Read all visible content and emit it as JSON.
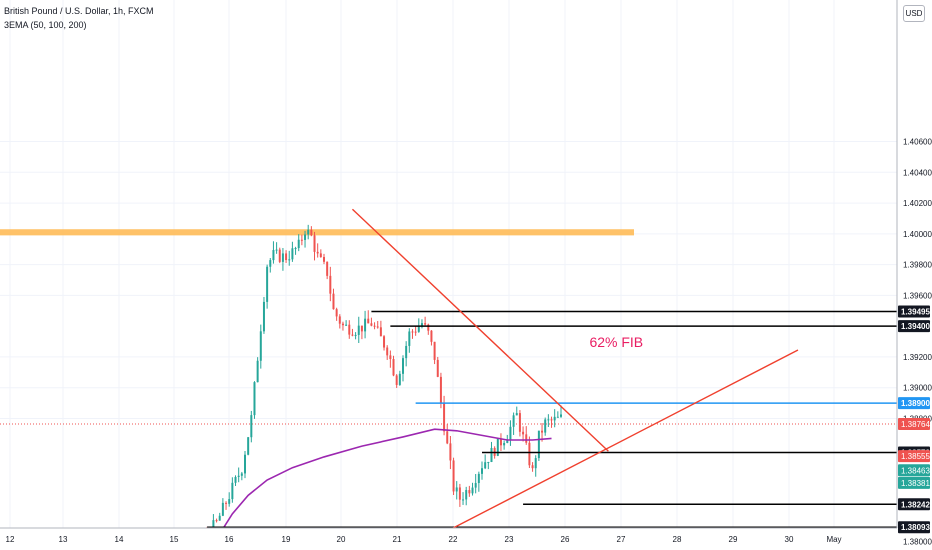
{
  "header": {
    "title": "British Pound / U.S. Dollar, 1h, FXCM",
    "indicator": "3EMA (50, 100, 200)"
  },
  "currency_button": "USD",
  "chart_data": {
    "type": "candlestick",
    "title": "British Pound / U.S. Dollar, 1h, FXCM",
    "x_tick_labels": [
      "12",
      "13",
      "14",
      "15",
      "16",
      "19",
      "20",
      "21",
      "22",
      "23",
      "26",
      "27",
      "28",
      "29",
      "30",
      "May"
    ],
    "y_ticks": [
      "1.40600",
      "1.40400",
      "1.40200",
      "1.40000",
      "1.39800",
      "1.39600",
      "1.39200",
      "1.39000",
      "1.38800",
      "1.38000"
    ],
    "y_range": [
      1.3788,
      1.4074
    ],
    "candle_count": 200,
    "price_path": [
      [
        0,
        1.379
      ],
      [
        30,
        1.3793
      ],
      [
        45,
        1.3792
      ],
      [
        55,
        1.3798
      ],
      [
        62,
        1.3802
      ],
      [
        66,
        1.3812
      ],
      [
        70,
        1.383
      ],
      [
        74,
        1.3848
      ],
      [
        77,
        1.388
      ],
      [
        80,
        1.394
      ],
      [
        82,
        1.398
      ],
      [
        84,
        1.3986
      ],
      [
        88,
        1.3985
      ],
      [
        90,
        1.3988
      ],
      [
        92,
        1.3992
      ],
      [
        94,
        1.4003
      ],
      [
        96,
        1.3998
      ],
      [
        98,
        1.3985
      ],
      [
        101,
        1.3975
      ],
      [
        103,
        1.395
      ],
      [
        106,
        1.394
      ],
      [
        110,
        1.3938
      ],
      [
        115,
        1.3942
      ],
      [
        120,
        1.3925
      ],
      [
        123,
        1.3905
      ],
      [
        127,
        1.3935
      ],
      [
        131,
        1.3942
      ],
      [
        133,
        1.3935
      ],
      [
        135,
        1.392
      ],
      [
        137,
        1.389
      ],
      [
        139,
        1.3862
      ],
      [
        141,
        1.3835
      ],
      [
        143,
        1.3828
      ],
      [
        146,
        1.3835
      ],
      [
        150,
        1.385
      ],
      [
        154,
        1.386
      ],
      [
        158,
        1.387
      ],
      [
        161,
        1.3882
      ],
      [
        164,
        1.386
      ],
      [
        166,
        1.3845
      ],
      [
        168,
        1.3868
      ],
      [
        170,
        1.3877
      ],
      [
        175,
        1.388
      ]
    ],
    "ema": [
      [
        60,
        1.3782
      ],
      [
        63,
        1.379
      ],
      [
        67,
        1.3805
      ],
      [
        71,
        1.3818
      ],
      [
        76,
        1.383
      ],
      [
        82,
        1.384
      ],
      [
        90,
        1.3848
      ],
      [
        100,
        1.3855
      ],
      [
        112,
        1.3862
      ],
      [
        125,
        1.3868
      ],
      [
        135,
        1.3873
      ],
      [
        142,
        1.3872
      ],
      [
        150,
        1.3869
      ],
      [
        158,
        1.3866
      ],
      [
        166,
        1.3866
      ],
      [
        172,
        1.3867
      ]
    ],
    "horizontal_levels": [
      {
        "label": "1.39495",
        "price": 1.39495,
        "color": "#000000",
        "x_start": 115
      },
      {
        "label": "1.39400",
        "price": 1.394,
        "color": "#000000",
        "x_start": 121
      },
      {
        "label": "1.38900",
        "price": 1.389,
        "color": "#2196f3",
        "x_start": 129
      },
      {
        "label": "1.38579",
        "price": 1.38579,
        "color": "#000000",
        "x_start": 150
      },
      {
        "label": "1.38242",
        "price": 1.38242,
        "color": "#000000",
        "x_start": 163
      },
      {
        "label": "1.38093",
        "price": 1.38093,
        "color": "#000000",
        "x_start": 63
      }
    ],
    "price_labels": [
      {
        "label": "1.38764",
        "price": 1.38764,
        "bg": "#ef5350"
      },
      {
        "label": "1.38555",
        "price": 1.38555,
        "bg": "#ef5350"
      },
      {
        "label": "1.38463",
        "price": 1.38463,
        "bg": "#26a69a"
      },
      {
        "label": "1.38381",
        "price": 1.38381,
        "bg": "#26a69a"
      }
    ],
    "current_price": 1.38764,
    "resistance_zone": {
      "low": 1.3999,
      "high": 1.4003,
      "color": "#ffb74d"
    },
    "trend_lines": [
      {
        "from": [
          109,
          1.4016
        ],
        "to": [
          190,
          1.38587
        ],
        "color": "#f0402e"
      },
      {
        "from": [
          117,
          1.37835
        ],
        "to": [
          250,
          1.39245
        ],
        "color": "#f0402e"
      }
    ],
    "annotation": {
      "text": "62% FIB",
      "price": 1.39265,
      "x_idx": 184,
      "color": "#e91e63"
    },
    "colors": {
      "up": "#26a69a",
      "down": "#ef5350",
      "ema": "#9c27b0",
      "zone": "#ffb74d"
    }
  }
}
